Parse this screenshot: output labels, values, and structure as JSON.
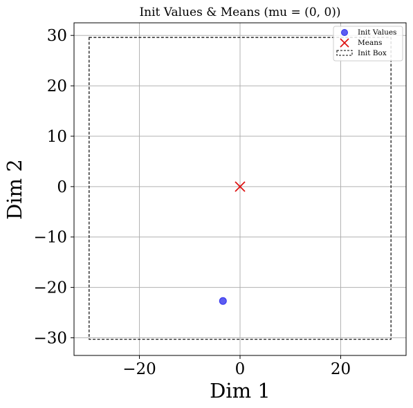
{
  "chart_data": {
    "type": "scatter",
    "title": "Init Values & Means (mu = (0, 0))",
    "xlabel": "Dim 1",
    "ylabel": "Dim 2",
    "xlim": [
      -33,
      33
    ],
    "ylim": [
      -33.5,
      32.5
    ],
    "xticks": [
      -20,
      0,
      20
    ],
    "xtick_labels": [
      "−20",
      "0",
      "20"
    ],
    "yticks": [
      -30,
      -20,
      -10,
      0,
      10,
      20,
      30
    ],
    "ytick_labels": [
      "−30",
      "−20",
      "−10",
      "0",
      "10",
      "20",
      "30"
    ],
    "grid": true,
    "legend_position": "top-right",
    "series": [
      {
        "name": "Init Values",
        "kind": "points",
        "marker": "circle",
        "color": "#3333ee",
        "points": [
          {
            "x": -3.4,
            "y": -22.7
          }
        ]
      },
      {
        "name": "Means",
        "kind": "points",
        "marker": "x",
        "color": "#dd1111",
        "points": [
          {
            "x": 0,
            "y": 0
          }
        ]
      },
      {
        "name": "Init Box",
        "kind": "box",
        "style": "dashed",
        "color": "#000000",
        "xmin": -30,
        "xmax": 30,
        "ymin": -30.3,
        "ymax": 29.6
      }
    ]
  }
}
